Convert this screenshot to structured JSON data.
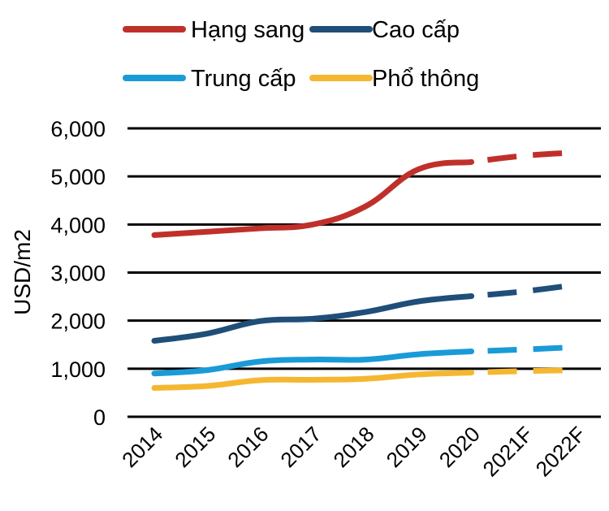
{
  "chart_data": {
    "type": "line",
    "title": "",
    "xlabel": "",
    "ylabel": "USD/m2",
    "categories": [
      "2014",
      "2015",
      "2016",
      "2017",
      "2018",
      "2019",
      "2020",
      "2021F",
      "2022F"
    ],
    "forecast_start_index": 7,
    "ylim": [
      0,
      6000
    ],
    "yticks": [
      "0",
      "1,000",
      "2,000",
      "3,000",
      "4,000",
      "5,000",
      "6,000"
    ],
    "ytick_values": [
      0,
      1000,
      2000,
      3000,
      4000,
      5000,
      6000
    ],
    "grid": true,
    "legend_position": "top",
    "series": [
      {
        "name": "Hạng sang",
        "color": "#C0302A",
        "values": [
          3780,
          3850,
          3920,
          4000,
          4380,
          5150,
          5300,
          5430,
          5500
        ]
      },
      {
        "name": "Cao cấp",
        "color": "#1F4E79",
        "values": [
          1580,
          1730,
          1990,
          2040,
          2180,
          2400,
          2510,
          2610,
          2750
        ]
      },
      {
        "name": "Trung cấp",
        "color": "#1A9BD8",
        "values": [
          900,
          970,
          1150,
          1190,
          1190,
          1300,
          1360,
          1400,
          1450
        ]
      },
      {
        "name": "Phổ thông",
        "color": "#F5B731",
        "values": [
          600,
          640,
          760,
          770,
          790,
          880,
          920,
          950,
          970
        ]
      }
    ]
  }
}
